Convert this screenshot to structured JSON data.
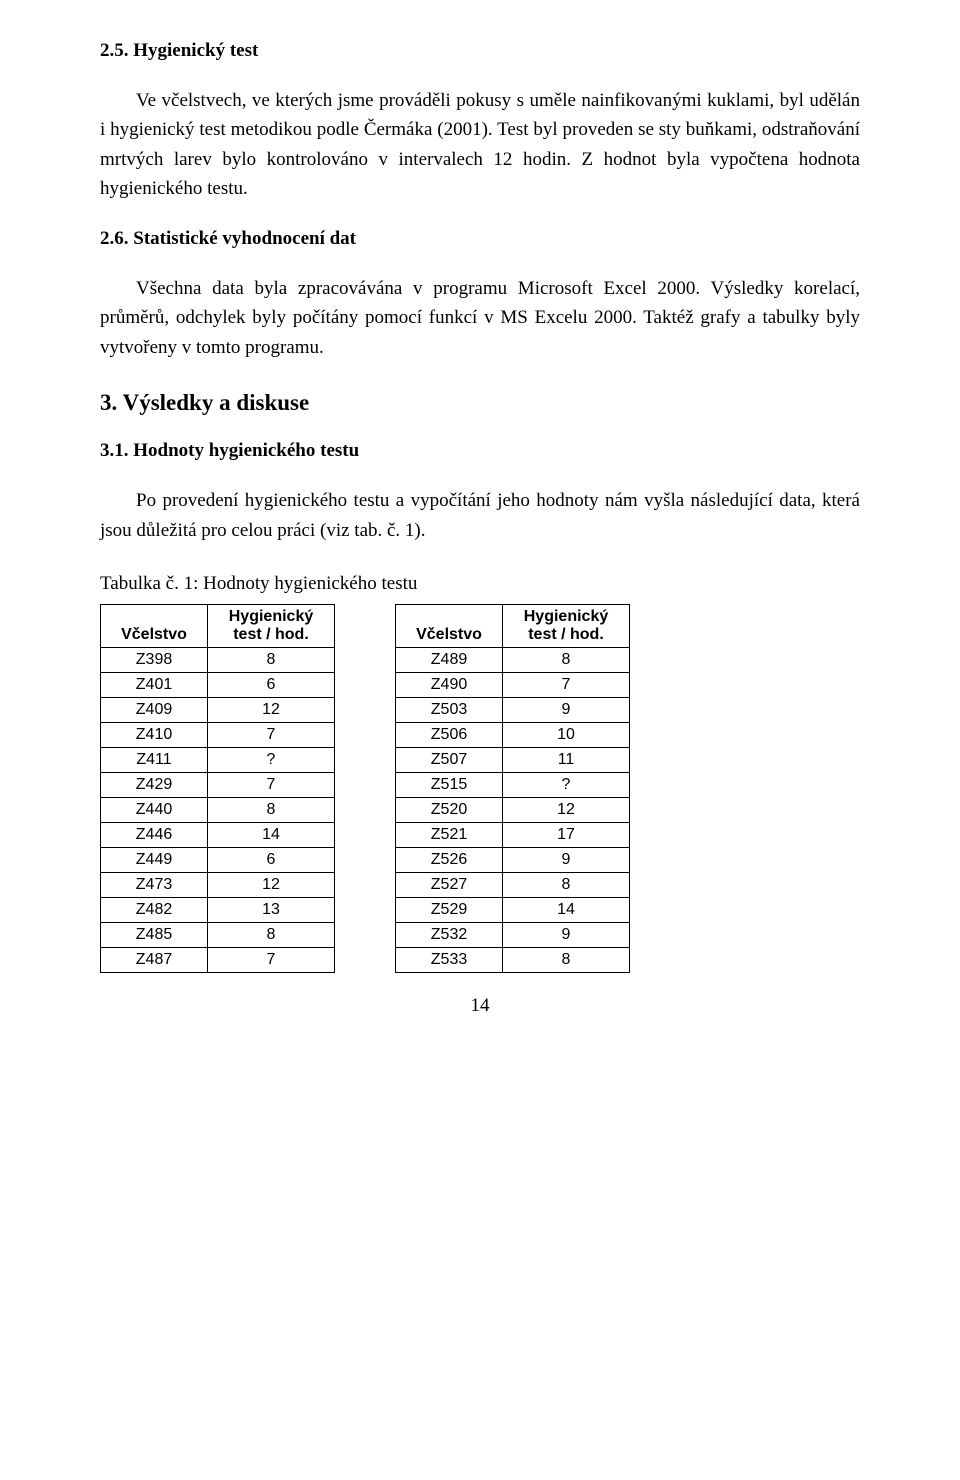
{
  "sections": {
    "s25": {
      "heading": "2.5. Hygienický test",
      "p1": "Ve včelstvech,  ve kterých jsme prováděli pokusy s uměle nainfikovanými kuklami, byl udělán i hygienický test metodikou podle Čermáka (2001). Test byl proveden se sty buňkami, odstraňování mrtvých larev bylo kontrolováno  v intervalech 12 hodin. Z hodnot byla vypočtena hodnota hygienického testu."
    },
    "s26": {
      "heading": "2.6. Statistické vyhodnocení dat",
      "p1": "Všechna data byla zpracovávána v programu Microsoft Excel 2000. Výsledky korelací, průměrů, odchylek byly počítány pomocí funkcí v MS Excelu 2000. Taktéž grafy a tabulky byly vytvořeny v tomto programu."
    },
    "s3": {
      "heading": "3. Výsledky a diskuse"
    },
    "s31": {
      "heading": "3.1. Hodnoty hygienického testu",
      "p1": "Po provedení  hygienického testu a vypočítání jeho hodnoty nám vyšla následující data, která jsou důležitá pro celou práci (viz tab. č. 1).",
      "caption": "Tabulka č. 1: Hodnoty hygienického testu"
    }
  },
  "table": {
    "header_col0": "Včelstvo",
    "header_col1_line1": "Hygienický",
    "header_col1_line2": "test / hod.",
    "left": [
      {
        "v": "Z398",
        "h": "8"
      },
      {
        "v": "Z401",
        "h": "6"
      },
      {
        "v": "Z409",
        "h": "12"
      },
      {
        "v": "Z410",
        "h": "7"
      },
      {
        "v": "Z411",
        "h": "?"
      },
      {
        "v": "Z429",
        "h": "7"
      },
      {
        "v": "Z440",
        "h": "8"
      },
      {
        "v": "Z446",
        "h": "14"
      },
      {
        "v": "Z449",
        "h": "6"
      },
      {
        "v": "Z473",
        "h": "12"
      },
      {
        "v": "Z482",
        "h": "13"
      },
      {
        "v": "Z485",
        "h": "8"
      },
      {
        "v": "Z487",
        "h": "7"
      }
    ],
    "right": [
      {
        "v": "Z489",
        "h": "8"
      },
      {
        "v": "Z490",
        "h": "7"
      },
      {
        "v": "Z503",
        "h": "9"
      },
      {
        "v": "Z506",
        "h": "10"
      },
      {
        "v": "Z507",
        "h": "11"
      },
      {
        "v": "Z515",
        "h": "?"
      },
      {
        "v": "Z520",
        "h": "12"
      },
      {
        "v": "Z521",
        "h": "17"
      },
      {
        "v": "Z526",
        "h": "9"
      },
      {
        "v": "Z527",
        "h": "8"
      },
      {
        "v": "Z529",
        "h": "14"
      },
      {
        "v": "Z532",
        "h": "9"
      },
      {
        "v": "Z533",
        "h": "8"
      }
    ]
  },
  "page_number": "14"
}
